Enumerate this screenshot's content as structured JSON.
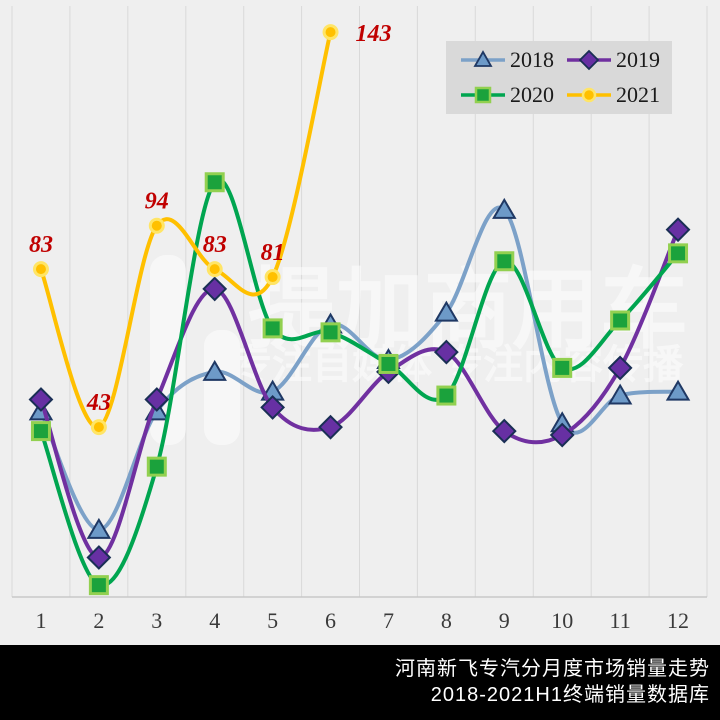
{
  "page": {
    "background": "#EFEFEF"
  },
  "chart_data": {
    "type": "line",
    "title": "河南新飞专汽分月度市场销量走势",
    "subtitle": "2018-2021H1终端销量数据库",
    "categories": [
      "1",
      "2",
      "3",
      "4",
      "5",
      "6",
      "7",
      "8",
      "9",
      "10",
      "11",
      "12"
    ],
    "xlabel": "",
    "ylabel": "",
    "ylim": [
      0,
      150
    ],
    "grid": "vertical-only",
    "legend_position": "top-right",
    "smooth_lines": true,
    "series": [
      {
        "name": "2018",
        "marker": "triangle",
        "line_color": "#7CA1C8",
        "marker_fill": "#6D9AC8",
        "marker_stroke": "#1F3864",
        "values": [
          47,
          17,
          47,
          57,
          52,
          69,
          60,
          72,
          98,
          44,
          51,
          52
        ]
      },
      {
        "name": "2019",
        "marker": "diamond",
        "line_color": "#7030A0",
        "marker_fill": "#6730A3",
        "marker_stroke": "#1A2F55",
        "values": [
          50,
          10,
          50,
          78,
          48,
          43,
          57,
          62,
          42,
          41,
          58,
          93
        ]
      },
      {
        "name": "2020",
        "marker": "square",
        "line_color": "#00A550",
        "marker_fill": "#1BA23C",
        "marker_stroke": "#92D050",
        "values": [
          42,
          3,
          33,
          105,
          68,
          67,
          59,
          51,
          85,
          58,
          70,
          87
        ]
      },
      {
        "name": "2021",
        "marker": "circle",
        "line_color": "#FFC000",
        "marker_fill": "#FFC000",
        "marker_stroke": "#FFE566",
        "values": [
          83,
          43,
          94,
          83,
          81,
          143
        ],
        "show_data_labels": true,
        "data_label_color": "#C00000",
        "data_labels": [
          "83",
          "43",
          "94",
          "83",
          "81",
          "143"
        ]
      }
    ]
  },
  "legend": {
    "bg": "#D9D9D9",
    "items": [
      "2018",
      "2019",
      "2020",
      "2021"
    ]
  },
  "watermark": {
    "brand": "提加商用车",
    "tagline": "专注自媒体 专注内容传播"
  },
  "x_axis": {
    "labels": [
      "1",
      "2",
      "3",
      "4",
      "5",
      "6",
      "7",
      "8",
      "9",
      "10",
      "11",
      "12"
    ],
    "color": "#3A3A3A"
  },
  "footer": {
    "bg": "#000000",
    "text_color": "#FFFFFF",
    "line1": "河南新飞专汽分月度市场销量走势",
    "line2": "2018-2021H1终端销量数据库"
  }
}
